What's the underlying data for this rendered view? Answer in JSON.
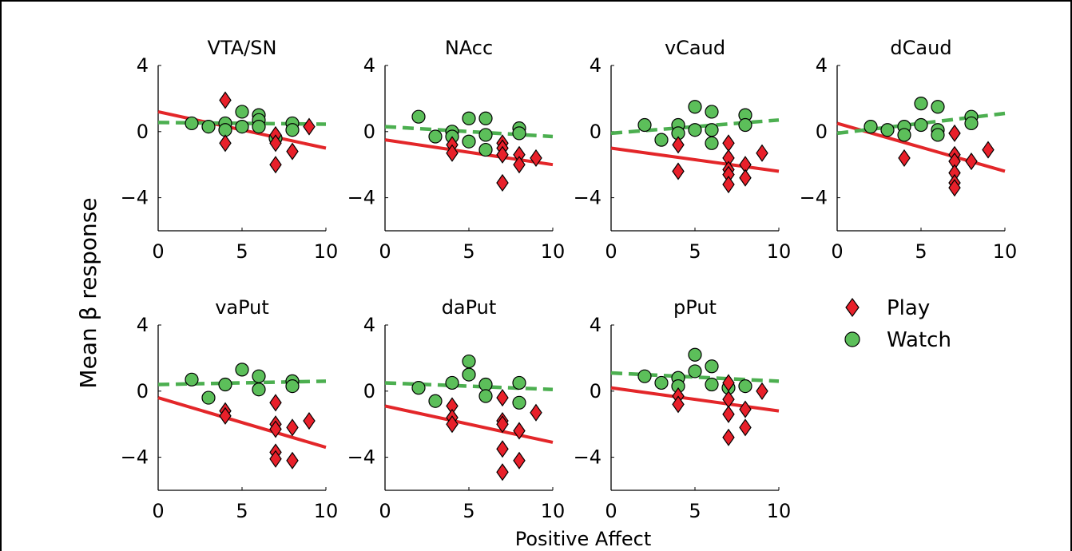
{
  "figure": {
    "ylabel": "Mean β response",
    "xlabel": "Positive Affect"
  },
  "legend": [
    {
      "label": "Play",
      "marker": "diamond",
      "color": "#e8202a"
    },
    {
      "label": "Watch",
      "marker": "circle",
      "color": "#5cbf5a"
    }
  ],
  "colors": {
    "play": "#e8202a",
    "watch": "#5cbf5a",
    "play_line": "#e32629",
    "watch_line": "#4caf50"
  },
  "chart_data": [
    {
      "type": "scatter",
      "title": "VTA/SN",
      "xlim": [
        0,
        10
      ],
      "ylim": [
        -6,
        4
      ],
      "xticks": [
        "0",
        "5",
        "10"
      ],
      "yticks": [
        "4",
        "0",
        "−4"
      ],
      "series": [
        {
          "name": "Play",
          "points": [
            [
              4,
              1.9
            ],
            [
              4,
              -0.7
            ],
            [
              7,
              -0.2
            ],
            [
              7,
              -0.7
            ],
            [
              7,
              -2.0
            ],
            [
              8,
              -1.2
            ],
            [
              9,
              0.3
            ]
          ],
          "fit": [
            [
              0,
              1.2
            ],
            [
              10,
              -1.0
            ]
          ]
        },
        {
          "name": "Watch",
          "points": [
            [
              2,
              0.5
            ],
            [
              3,
              0.3
            ],
            [
              4,
              0.5
            ],
            [
              4,
              0.1
            ],
            [
              5,
              1.2
            ],
            [
              5,
              0.3
            ],
            [
              6,
              1.0
            ],
            [
              6,
              0.7
            ],
            [
              6,
              0.3
            ],
            [
              7,
              -0.4
            ],
            [
              8,
              0.5
            ],
            [
              8,
              0.1
            ]
          ],
          "fit": [
            [
              0,
              0.55
            ],
            [
              10,
              0.45
            ]
          ]
        }
      ]
    },
    {
      "type": "scatter",
      "title": "NAcc",
      "xlim": [
        0,
        10
      ],
      "ylim": [
        -6,
        4
      ],
      "xticks": [
        "0",
        "5",
        "10"
      ],
      "yticks": [
        "4",
        "0",
        "−4"
      ],
      "series": [
        {
          "name": "Play",
          "points": [
            [
              4,
              -0.8
            ],
            [
              4,
              -1.3
            ],
            [
              7,
              -0.7
            ],
            [
              7,
              -1.0
            ],
            [
              7,
              -1.4
            ],
            [
              7,
              -3.1
            ],
            [
              8,
              -1.4
            ],
            [
              8,
              -2.0
            ],
            [
              9,
              -1.6
            ]
          ],
          "fit": [
            [
              0,
              -0.5
            ],
            [
              10,
              -2.0
            ]
          ]
        },
        {
          "name": "Watch",
          "points": [
            [
              2,
              0.9
            ],
            [
              3,
              -0.3
            ],
            [
              4,
              0.0
            ],
            [
              4,
              -0.3
            ],
            [
              5,
              0.8
            ],
            [
              5,
              -0.6
            ],
            [
              6,
              0.8
            ],
            [
              6,
              -0.2
            ],
            [
              6,
              -1.1
            ],
            [
              8,
              0.2
            ],
            [
              8,
              -0.1
            ]
          ],
          "fit": [
            [
              0,
              0.3
            ],
            [
              10,
              -0.3
            ]
          ]
        }
      ]
    },
    {
      "type": "scatter",
      "title": "vCaud",
      "xlim": [
        0,
        10
      ],
      "ylim": [
        -6,
        4
      ],
      "xticks": [
        "0",
        "5",
        "10"
      ],
      "yticks": [
        "4",
        "0",
        "−4"
      ],
      "series": [
        {
          "name": "Play",
          "points": [
            [
              4,
              -0.8
            ],
            [
              4,
              -2.4
            ],
            [
              7,
              -0.7
            ],
            [
              7,
              -1.6
            ],
            [
              7,
              -2.3
            ],
            [
              7,
              -2.6
            ],
            [
              7,
              -3.2
            ],
            [
              8,
              -2.0
            ],
            [
              8,
              -2.8
            ],
            [
              9,
              -1.3
            ]
          ],
          "fit": [
            [
              0,
              -1.0
            ],
            [
              10,
              -2.4
            ]
          ]
        },
        {
          "name": "Watch",
          "points": [
            [
              2,
              0.4
            ],
            [
              3,
              -0.5
            ],
            [
              4,
              0.4
            ],
            [
              4,
              -0.1
            ],
            [
              5,
              1.5
            ],
            [
              5,
              0.1
            ],
            [
              6,
              1.2
            ],
            [
              6,
              0.1
            ],
            [
              6,
              -0.7
            ],
            [
              8,
              1.0
            ],
            [
              8,
              0.4
            ]
          ],
          "fit": [
            [
              0,
              -0.1
            ],
            [
              10,
              0.7
            ]
          ]
        }
      ]
    },
    {
      "type": "scatter",
      "title": "dCaud",
      "xlim": [
        0,
        10
      ],
      "ylim": [
        -6,
        4
      ],
      "xticks": [
        "0",
        "5",
        "10"
      ],
      "yticks": [
        "4",
        "0",
        "−4"
      ],
      "series": [
        {
          "name": "Play",
          "points": [
            [
              4,
              -1.6
            ],
            [
              7,
              -0.1
            ],
            [
              7,
              -1.4
            ],
            [
              7,
              -1.8
            ],
            [
              7,
              -2.5
            ],
            [
              7,
              -3.1
            ],
            [
              7,
              -3.4
            ],
            [
              8,
              -1.8
            ],
            [
              9,
              -1.1
            ]
          ],
          "fit": [
            [
              0,
              0.5
            ],
            [
              10,
              -2.4
            ]
          ]
        },
        {
          "name": "Watch",
          "points": [
            [
              2,
              0.3
            ],
            [
              3,
              0.1
            ],
            [
              4,
              0.3
            ],
            [
              4,
              -0.2
            ],
            [
              5,
              1.7
            ],
            [
              5,
              0.4
            ],
            [
              6,
              1.5
            ],
            [
              6,
              0.1
            ],
            [
              6,
              -0.2
            ],
            [
              8,
              0.9
            ],
            [
              8,
              0.5
            ]
          ],
          "fit": [
            [
              0,
              -0.1
            ],
            [
              10,
              1.1
            ]
          ]
        }
      ]
    },
    {
      "type": "scatter",
      "title": "vaPut",
      "xlim": [
        0,
        10
      ],
      "ylim": [
        -6,
        4
      ],
      "xticks": [
        "0",
        "5",
        "10"
      ],
      "yticks": [
        "4",
        "0",
        "−4"
      ],
      "series": [
        {
          "name": "Play",
          "points": [
            [
              4,
              -1.2
            ],
            [
              4,
              -1.5
            ],
            [
              7,
              -0.7
            ],
            [
              7,
              -2.0
            ],
            [
              7,
              -2.3
            ],
            [
              7,
              -3.7
            ],
            [
              7,
              -4.1
            ],
            [
              8,
              -2.2
            ],
            [
              8,
              -4.2
            ],
            [
              9,
              -1.8
            ]
          ],
          "fit": [
            [
              0,
              -0.4
            ],
            [
              10,
              -3.4
            ]
          ]
        },
        {
          "name": "Watch",
          "points": [
            [
              2,
              0.7
            ],
            [
              3,
              -0.4
            ],
            [
              4,
              0.4
            ],
            [
              5,
              1.3
            ],
            [
              6,
              0.9
            ],
            [
              6,
              0.1
            ],
            [
              8,
              0.6
            ],
            [
              8,
              0.3
            ]
          ],
          "fit": [
            [
              0,
              0.4
            ],
            [
              10,
              0.6
            ]
          ]
        }
      ]
    },
    {
      "type": "scatter",
      "title": "daPut",
      "xlim": [
        0,
        10
      ],
      "ylim": [
        -6,
        4
      ],
      "xticks": [
        "0",
        "5",
        "10"
      ],
      "yticks": [
        "4",
        "0",
        "−4"
      ],
      "series": [
        {
          "name": "Play",
          "points": [
            [
              4,
              -0.9
            ],
            [
              4,
              -1.6
            ],
            [
              4,
              -2.0
            ],
            [
              7,
              -0.4
            ],
            [
              7,
              -1.8
            ],
            [
              7,
              -2.0
            ],
            [
              7,
              -3.5
            ],
            [
              7,
              -4.9
            ],
            [
              8,
              -2.4
            ],
            [
              8,
              -4.2
            ],
            [
              9,
              -1.3
            ]
          ],
          "fit": [
            [
              0,
              -0.9
            ],
            [
              10,
              -3.1
            ]
          ]
        },
        {
          "name": "Watch",
          "points": [
            [
              2,
              0.2
            ],
            [
              3,
              -0.6
            ],
            [
              4,
              0.5
            ],
            [
              5,
              1.8
            ],
            [
              5,
              1.0
            ],
            [
              6,
              0.4
            ],
            [
              6,
              -0.3
            ],
            [
              8,
              0.5
            ],
            [
              8,
              -0.7
            ]
          ],
          "fit": [
            [
              0,
              0.5
            ],
            [
              10,
              0.1
            ]
          ]
        }
      ]
    },
    {
      "type": "scatter",
      "title": "pPut",
      "xlim": [
        0,
        10
      ],
      "ylim": [
        -6,
        4
      ],
      "xticks": [
        "0",
        "5",
        "10"
      ],
      "yticks": [
        "4",
        "0",
        "−4"
      ],
      "series": [
        {
          "name": "Play",
          "points": [
            [
              4,
              -0.3
            ],
            [
              4,
              -0.8
            ],
            [
              7,
              0.5
            ],
            [
              7,
              -0.5
            ],
            [
              7,
              -1.4
            ],
            [
              7,
              -2.8
            ],
            [
              8,
              -1.1
            ],
            [
              8,
              -2.2
            ],
            [
              9,
              0.0
            ]
          ],
          "fit": [
            [
              0,
              0.2
            ],
            [
              10,
              -1.2
            ]
          ]
        },
        {
          "name": "Watch",
          "points": [
            [
              2,
              0.9
            ],
            [
              3,
              0.5
            ],
            [
              4,
              0.8
            ],
            [
              4,
              0.3
            ],
            [
              5,
              2.2
            ],
            [
              5,
              1.2
            ],
            [
              6,
              1.5
            ],
            [
              6,
              0.4
            ],
            [
              7,
              0.2
            ],
            [
              8,
              0.3
            ]
          ],
          "fit": [
            [
              0,
              1.1
            ],
            [
              10,
              0.6
            ]
          ]
        }
      ]
    }
  ]
}
